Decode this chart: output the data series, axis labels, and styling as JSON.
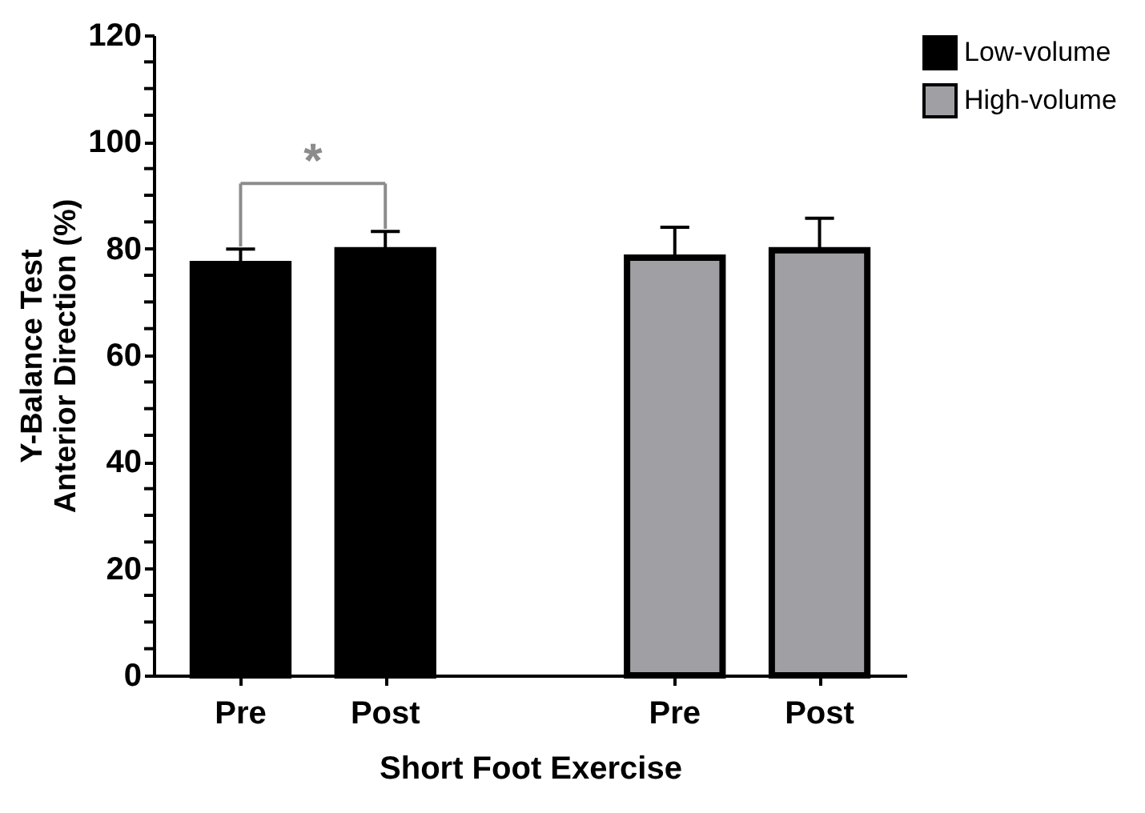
{
  "chart_data": {
    "type": "bar",
    "xlabel": "Short Foot Exercise",
    "ylabel": "Y-Balance Test\nAnterior Direction (%)",
    "categories": [
      "Pre",
      "Post",
      null,
      "Pre",
      "Post"
    ],
    "series": [
      {
        "name": "Low-volume",
        "color": "#000000",
        "values": [
          77.1,
          79.7,
          null,
          null,
          null
        ],
        "errors": [
          2.8,
          3.5,
          null,
          null,
          null
        ]
      },
      {
        "name": "High-volume",
        "color": "#a0a0a4",
        "values": [
          null,
          null,
          null,
          78.3,
          79.7
        ],
        "errors": [
          null,
          null,
          null,
          5.7,
          6.0
        ]
      }
    ],
    "ylim": [
      0,
      120
    ],
    "yticks": [
      0,
      {
        "value": 5,
        "label": null
      },
      {
        "value": 10,
        "label": null
      },
      {
        "value": 15,
        "label": null
      },
      20,
      {
        "value": 25,
        "label": null
      },
      {
        "value": 30,
        "label": null
      },
      {
        "value": 35,
        "label": null
      },
      40,
      {
        "value": 45,
        "label": null
      },
      {
        "value": 50,
        "label": null
      },
      {
        "value": 55,
        "label": null
      },
      60,
      {
        "value": 65,
        "label": null
      },
      {
        "value": 70,
        "label": null
      },
      {
        "value": 75,
        "label": null
      },
      80,
      {
        "value": 85,
        "label": null
      },
      {
        "value": 90,
        "label": null
      },
      {
        "value": 95,
        "label": null
      },
      100,
      {
        "value": 105,
        "label": null
      },
      {
        "value": 110,
        "label": null
      },
      {
        "value": 115,
        "label": null
      },
      120
    ],
    "annotations": [
      "*"
    ],
    "grid": false,
    "legend": "top right"
  }
}
